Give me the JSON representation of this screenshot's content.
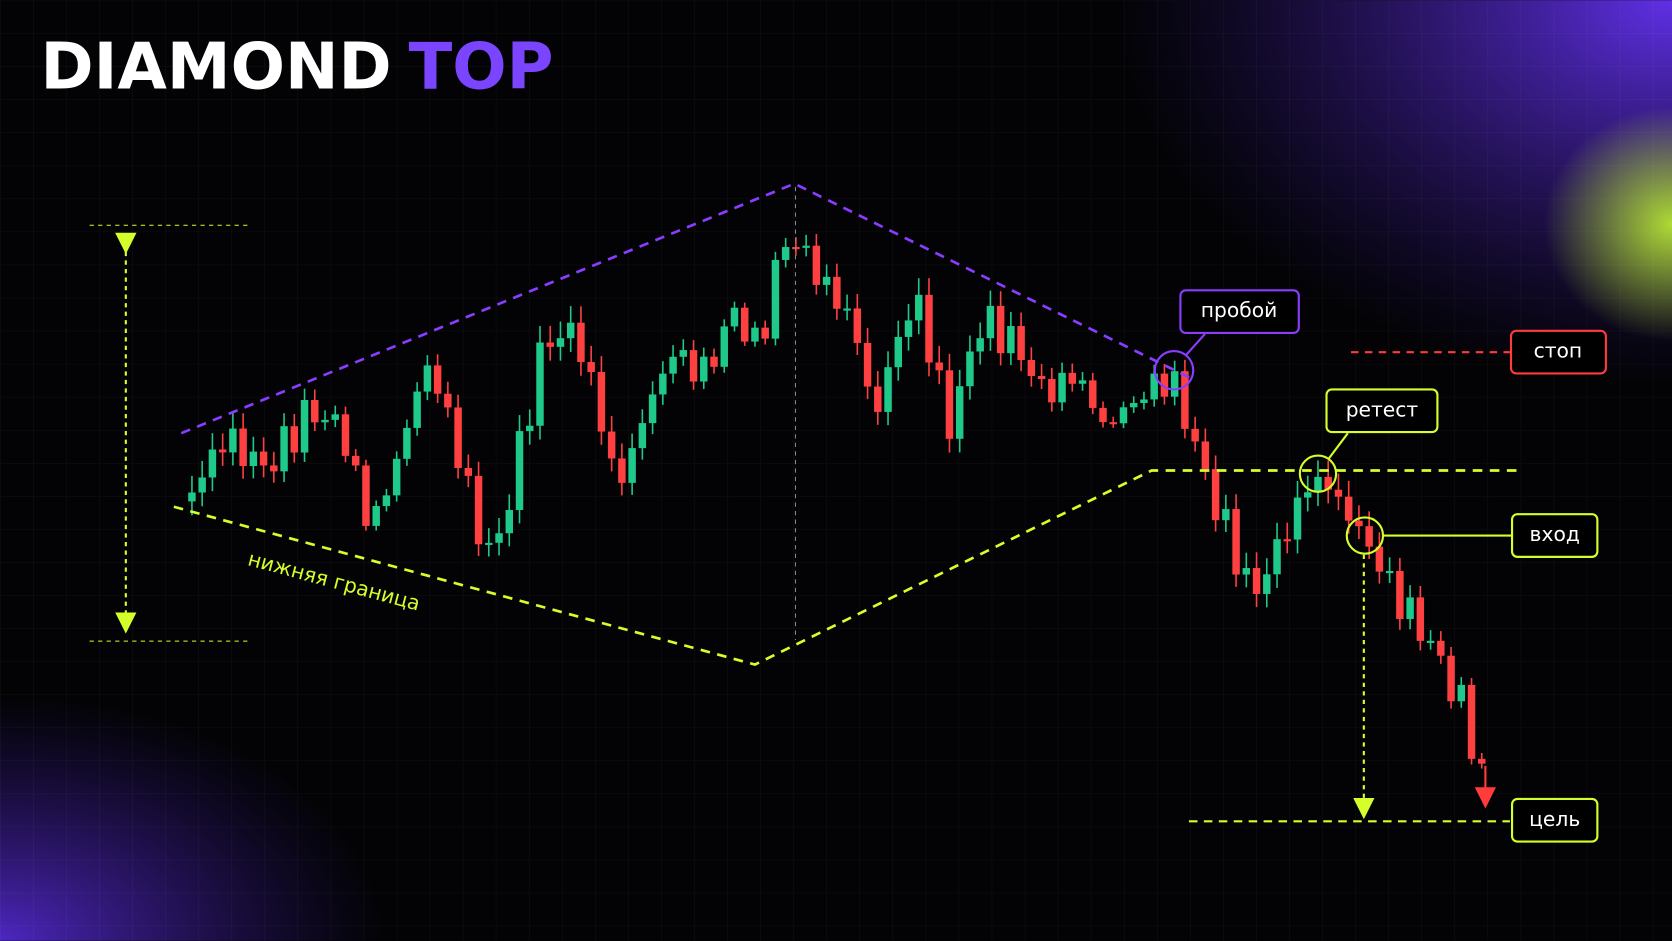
{
  "header": {
    "title_main": "DIAMOND",
    "title_accent": "TOP"
  },
  "labels": {
    "breakout": "пробой",
    "stop": "стоп",
    "retest": "ретест",
    "entry": "вход",
    "target": "цель",
    "lower_bound": "нижняя граница"
  }
}
